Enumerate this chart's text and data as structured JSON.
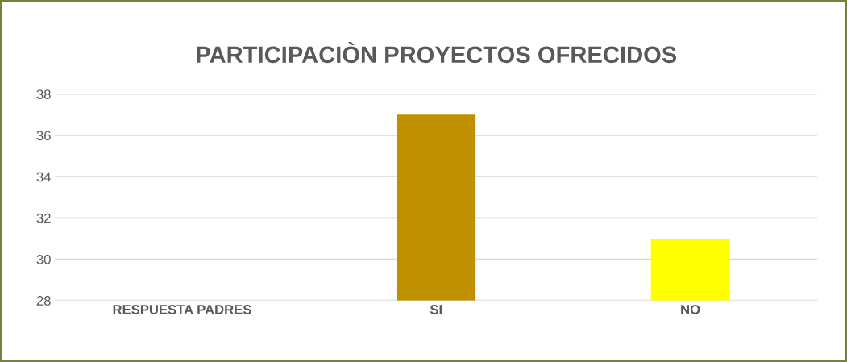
{
  "chart_data": {
    "type": "bar",
    "title": "PARTICIPACIÒN PROYECTOS OFRECIDOS",
    "categories": [
      "RESPUESTA PADRES",
      "SI",
      "NO"
    ],
    "values": [
      null,
      37,
      31
    ],
    "colors": [
      "#bf9000",
      "#bf9000",
      "#ffff00"
    ],
    "ylim": [
      28,
      38
    ],
    "yticks": [
      28,
      30,
      32,
      34,
      36,
      38
    ],
    "grid": "y"
  }
}
